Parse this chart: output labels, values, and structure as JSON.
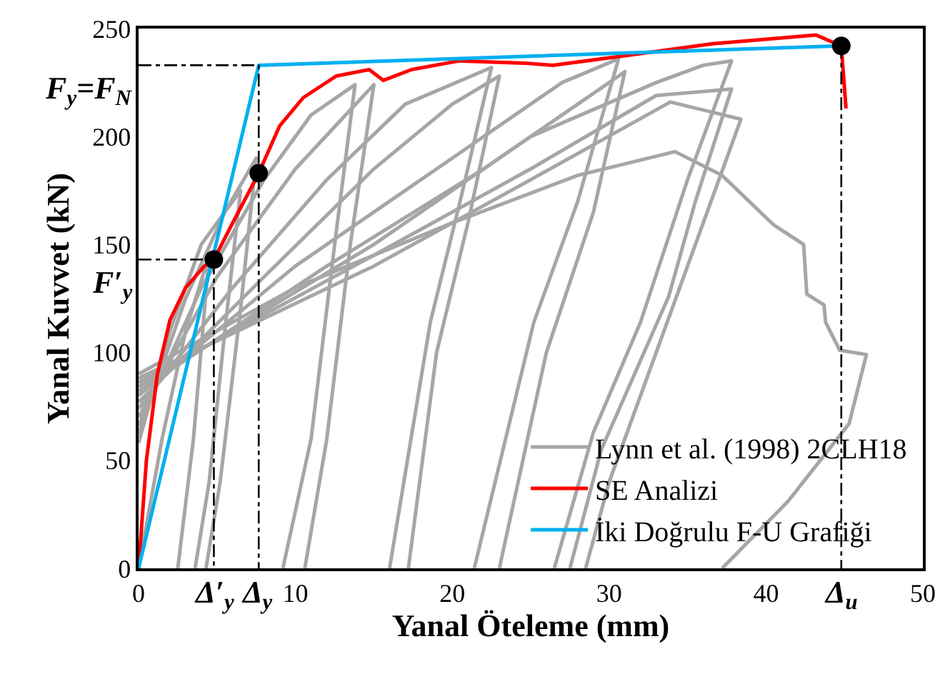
{
  "chart_data": {
    "type": "line",
    "xlabel": "Yanal Öteleme (mm)",
    "ylabel": "Yanal Kuvvet (kN)",
    "xlim": [
      0,
      50
    ],
    "ylim": [
      0,
      250
    ],
    "xticks": [
      0,
      10,
      20,
      30,
      40,
      50
    ],
    "yticks": [
      0,
      50,
      100,
      150,
      200,
      250
    ],
    "legend": "bottom right",
    "series": [
      {
        "name": "Lynn et al. (1998) 2CLH18",
        "color": "#a6a6a6",
        "line_style": "solid",
        "x": [
          0,
          1.5,
          3,
          4.5,
          3.5,
          2.5,
          null,
          0,
          2,
          4,
          6.5,
          5.5,
          4.5,
          3.6,
          null,
          0,
          3,
          5.5,
          7.5,
          6.5,
          5.2,
          4.3,
          null,
          0,
          4,
          8,
          11,
          13.8,
          12.5,
          11,
          9.2,
          null,
          0,
          5,
          10,
          15,
          13.5,
          12,
          10.6,
          null,
          0,
          6,
          12,
          17,
          22.5,
          20.5,
          18.6,
          16,
          null,
          0,
          8,
          15,
          20,
          23,
          21,
          19,
          17.2,
          null,
          0,
          10,
          20,
          27,
          30.6,
          28,
          25.2,
          21.4,
          null,
          0,
          12,
          22,
          28,
          31,
          29,
          26,
          23,
          null,
          0,
          15,
          25,
          33,
          36,
          37.8,
          35,
          32,
          29,
          26.5,
          null,
          0,
          15,
          25,
          33,
          37.8,
          35.5,
          33.8,
          29.5,
          27.5,
          null,
          0,
          15,
          25,
          33.9,
          38.4,
          36,
          33,
          30,
          28.5,
          null,
          0,
          10,
          20,
          28,
          34.2,
          37.2,
          40.5,
          42.4,
          42.6,
          43.7,
          43.8,
          44.7,
          46.4,
          45.3,
          41.4,
          37.2
        ],
        "values": [
          0,
          60,
          110,
          145,
          60,
          0,
          null,
          58,
          110,
          150,
          175,
          110,
          40,
          0,
          null,
          62,
          125,
          165,
          190,
          120,
          40,
          0,
          null,
          66,
          130,
          180,
          210,
          224,
          150,
          60,
          0,
          null,
          70,
          135,
          185,
          224,
          150,
          60,
          0,
          null,
          74,
          130,
          180,
          215,
          232,
          170,
          114,
          0,
          null,
          77,
          135,
          185,
          215,
          228,
          160,
          100,
          0,
          null,
          80,
          140,
          190,
          225,
          236,
          170,
          114,
          0,
          null,
          82,
          140,
          185,
          215,
          230,
          165,
          100,
          0,
          null,
          84,
          150,
          200,
          225,
          233,
          235,
          180,
          114,
          63,
          0,
          null,
          86,
          145,
          185,
          219,
          222,
          170,
          126,
          55,
          0,
          null,
          88,
          140,
          180,
          216,
          208,
          160,
          100,
          40,
          0,
          null,
          90,
          130,
          160,
          182,
          193,
          182,
          159,
          150,
          127,
          122,
          114,
          101,
          99,
          67,
          31,
          0
        ]
      },
      {
        "name": "SE Analizi",
        "color": "#ff0000",
        "line_style": "solid",
        "x": [
          0,
          0.5,
          1.2,
          2,
          3,
          4.2,
          4.8,
          6,
          7.66,
          9,
          10.5,
          12.6,
          14.7,
          15.6,
          17.4,
          20.4,
          24.6,
          26.4,
          30.6,
          36.6,
          43.2,
          44.8,
          45.1
        ],
        "values": [
          0,
          50,
          90,
          115,
          130,
          140,
          143,
          160,
          183,
          205,
          218,
          228,
          231,
          226,
          231,
          235,
          234,
          233,
          237,
          243,
          247,
          242,
          213
        ]
      },
      {
        "name": "İki Doğrulu F-U Grafiği",
        "color": "#00b0f0",
        "line_style": "solid",
        "x": [
          0,
          7.66,
          44.8
        ],
        "values": [
          0,
          233,
          242
        ]
      },
      {
        "color": "#000000",
        "line_style": "dashed",
        "x": [
          0,
          7.66,
          7.66
        ],
        "values": [
          233,
          233,
          0
        ]
      },
      {
        "color": "#000000",
        "line_style": "dashed",
        "x": [
          0,
          4.8,
          4.8
        ],
        "values": [
          143,
          143,
          0
        ]
      },
      {
        "color": "#000000",
        "line_style": "dashed",
        "x": [
          44.8,
          44.8
        ],
        "values": [
          242,
          0
        ]
      },
      {
        "type": "scatter",
        "color": "#000000",
        "marker": "circle",
        "x": [
          4.8,
          7.66,
          44.8
        ],
        "values": [
          143,
          183,
          242
        ]
      }
    ],
    "annotations": [
      {
        "text": "F$_{y}$=F$_{N}$",
        "x": 0,
        "y": 233
      },
      {
        "text": "F′$_{y}$",
        "x": 0,
        "y": 143
      },
      {
        "text": "Δ′$_{y}$",
        "x": 4.8,
        "y": 0
      },
      {
        "text": "Δ$_{y}$",
        "x": 7.6,
        "y": 0
      },
      {
        "text": "Δ$_{u}$",
        "x": 44.8,
        "y": 0
      }
    ]
  }
}
